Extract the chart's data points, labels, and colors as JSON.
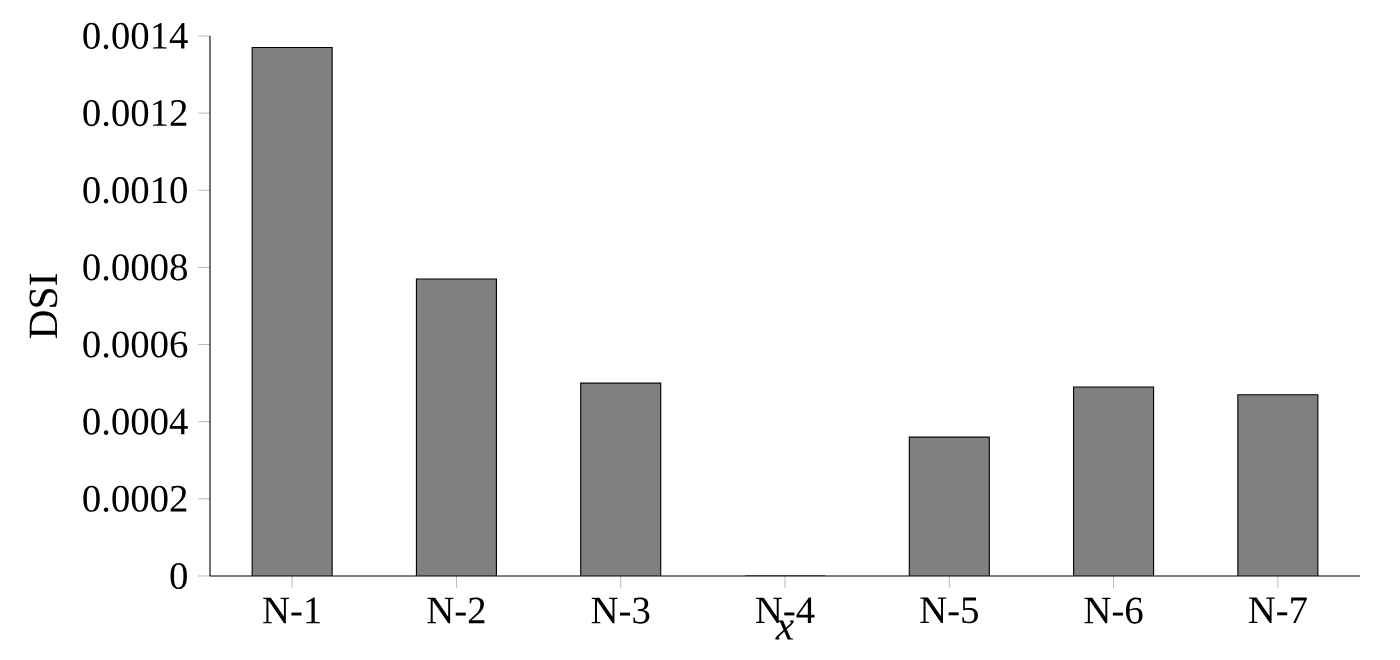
{
  "chart_data": {
    "type": "bar",
    "xlabel": "x",
    "ylabel": "DSI",
    "categories": [
      "N-1",
      "N-2",
      "N-3",
      "N-4",
      "N-5",
      "N-6",
      "N-7"
    ],
    "values": [
      0.00137,
      0.00077,
      0.0005,
      0.0,
      0.00036,
      0.00049,
      0.00047
    ],
    "color": "#808080",
    "ylim": [
      0,
      0.0014
    ],
    "yticks": [
      0,
      0.0002,
      0.0004,
      0.0006,
      0.0008,
      {
        "value": 0.001,
        "label": "0.0010"
      },
      0.0012,
      0.0014
    ],
    "grid": false
  }
}
